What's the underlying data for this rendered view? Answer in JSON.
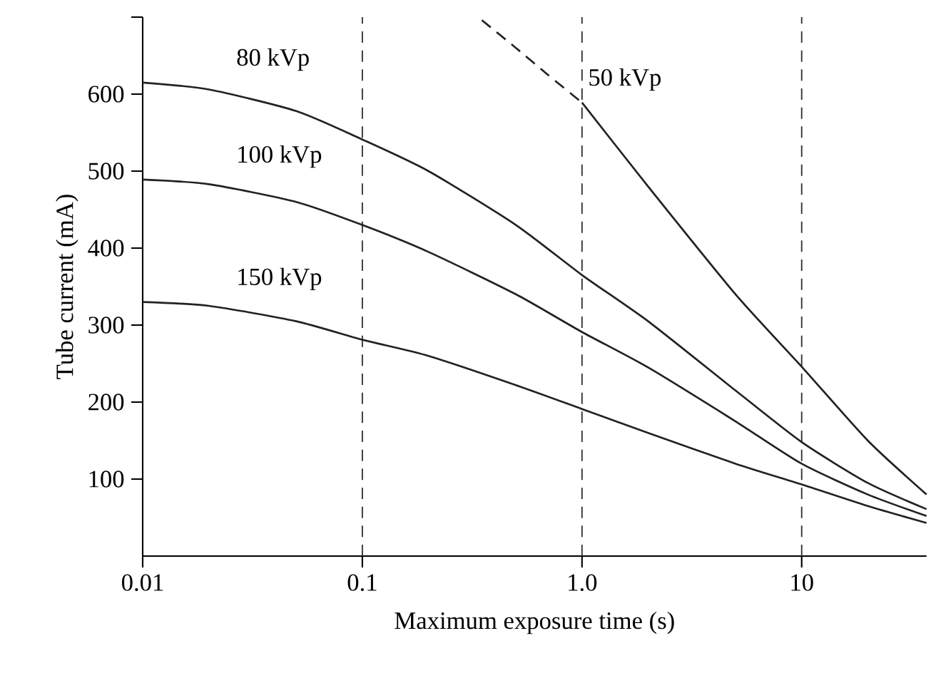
{
  "chart_data": {
    "type": "line",
    "xlabel": "Maximum exposure time (s)",
    "ylabel": "Tube current (mA)",
    "log": "x",
    "xlim": [
      0.01,
      37
    ],
    "ylim": [
      0,
      700
    ],
    "xticks": [
      0.01,
      0.1,
      {
        "value": 1,
        "label": "1.0"
      },
      10
    ],
    "yticks": [
      100,
      200,
      300,
      400,
      500,
      600,
      {
        "value": 700,
        "label": null
      }
    ],
    "grid": false,
    "marker": "none",
    "ref_lines": [
      {
        "axis": "x",
        "value": 0.1,
        "line_style": "dashed",
        "color": "#333333"
      },
      {
        "axis": "x",
        "value": 1,
        "line_style": "dashed",
        "color": "#333333"
      },
      {
        "axis": "x",
        "value": 10,
        "line_style": "dashed",
        "color": "#333333"
      }
    ],
    "series": [
      {
        "name": "80 kVp",
        "color": "#222222",
        "line_style": "solid",
        "x": [
          0.01,
          0.02,
          0.05,
          0.1,
          0.2,
          0.5,
          1,
          2,
          5,
          10,
          20,
          37
        ],
        "values": [
          615,
          606,
          578,
          541,
          500,
          430,
          365,
          305,
          215,
          148,
          95,
          61
        ]
      },
      {
        "name": "100 kVp",
        "color": "#222222",
        "line_style": "solid",
        "x": [
          0.01,
          0.02,
          0.05,
          0.1,
          0.2,
          0.5,
          1,
          2,
          5,
          10,
          20,
          37
        ],
        "values": [
          489,
          483,
          460,
          430,
          395,
          340,
          291,
          245,
          175,
          120,
          80,
          52
        ]
      },
      {
        "name": "150 kVp",
        "color": "#222222",
        "line_style": "solid",
        "x": [
          0.01,
          0.02,
          0.05,
          0.1,
          0.2,
          0.5,
          1,
          2,
          5,
          10,
          20,
          37
        ],
        "values": [
          330,
          325,
          305,
          281,
          260,
          222,
          191,
          160,
          120,
          93,
          65,
          43
        ]
      },
      {
        "color": "#222222",
        "line_style": "dashed",
        "x": [
          0.35,
          0.5,
          0.7,
          1
        ],
        "values": [
          696,
          660,
          625,
          589
        ]
      },
      {
        "name": "50 kVp",
        "color": "#222222",
        "line_style": "solid",
        "x": [
          1,
          2,
          5,
          10,
          20,
          37
        ],
        "values": [
          589,
          480,
          340,
          246,
          150,
          80
        ]
      }
    ]
  }
}
